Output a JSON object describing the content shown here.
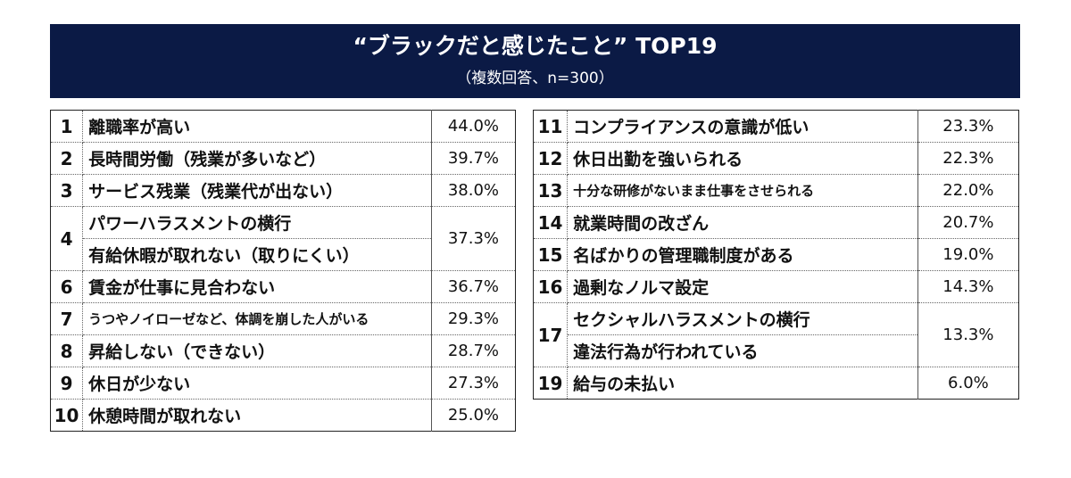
{
  "header": {
    "title": "“ブラックだと感じたこと” TOP19",
    "subtitle": "（複数回答、n=300）"
  },
  "chart_data": {
    "type": "table",
    "title": "“ブラックだと感じたこと” TOP19",
    "subtitle": "（複数回答、n=300）",
    "unit": "%",
    "rows": [
      {
        "rank": "1",
        "label": "離職率が高い",
        "value": "44.0%"
      },
      {
        "rank": "2",
        "label": "長時間労働（残業が多いなど）",
        "value": "39.7%"
      },
      {
        "rank": "3",
        "label": "サービス残業（残業代が出ない）",
        "value": "38.0%"
      },
      {
        "rank": "4",
        "label": "パワーハラスメントの横行",
        "value": "37.3%"
      },
      {
        "rank": "4",
        "label": "有給休暇が取れない（取りにくい）",
        "value": "37.3%"
      },
      {
        "rank": "6",
        "label": "賃金が仕事に見合わない",
        "value": "36.7%"
      },
      {
        "rank": "7",
        "label": "うつやノイローゼなど、体調を崩した人がいる",
        "value": "29.3%"
      },
      {
        "rank": "8",
        "label": "昇給しない（できない）",
        "value": "28.7%"
      },
      {
        "rank": "9",
        "label": "休日が少ない",
        "value": "27.3%"
      },
      {
        "rank": "10",
        "label": "休憩時間が取れない",
        "value": "25.0%"
      },
      {
        "rank": "11",
        "label": "コンプライアンスの意識が低い",
        "value": "23.3%"
      },
      {
        "rank": "12",
        "label": "休日出勤を強いられる",
        "value": "22.3%"
      },
      {
        "rank": "13",
        "label": "十分な研修がないまま仕事をさせられる",
        "value": "22.0%"
      },
      {
        "rank": "14",
        "label": "就業時間の改ざん",
        "value": "20.7%"
      },
      {
        "rank": "15",
        "label": "名ばかりの管理職制度がある",
        "value": "19.0%"
      },
      {
        "rank": "16",
        "label": "過剰なノルマ設定",
        "value": "14.3%"
      },
      {
        "rank": "17",
        "label": "セクシャルハラスメントの横行",
        "value": "13.3%"
      },
      {
        "rank": "17",
        "label": "違法行為が行われている",
        "value": "13.3%"
      },
      {
        "rank": "19",
        "label": "給与の未払い",
        "value": "6.0%"
      }
    ]
  },
  "colors": {
    "banner_background": "#0b1a45",
    "banner_text": "#ffffff",
    "table_border": "#222222"
  }
}
